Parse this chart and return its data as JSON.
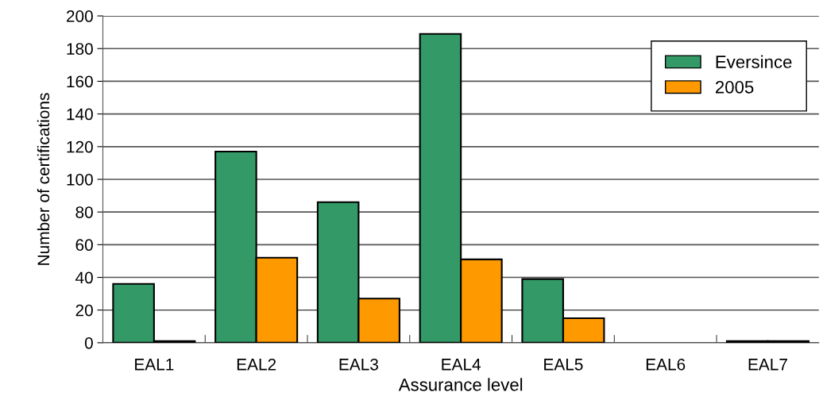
{
  "chart_data": {
    "type": "bar",
    "xlabel": "Assurance level",
    "ylabel": "Number of certifications",
    "categories": [
      "EAL1",
      "EAL2",
      "EAL3",
      "EAL4",
      "EAL5",
      "EAL6",
      "EAL7"
    ],
    "series": [
      {
        "name": "Eversince",
        "color": "#339966",
        "values": [
          36,
          117,
          86,
          189,
          39,
          0,
          1
        ]
      },
      {
        "name": "2005",
        "color": "#ff9900",
        "values": [
          1,
          52,
          27,
          51,
          15,
          0,
          1
        ]
      }
    ],
    "ylim": [
      0,
      200
    ],
    "yticks": [
      0,
      20,
      40,
      60,
      80,
      100,
      120,
      140,
      160,
      180,
      200
    ],
    "grid": "y",
    "legend": "top right"
  }
}
